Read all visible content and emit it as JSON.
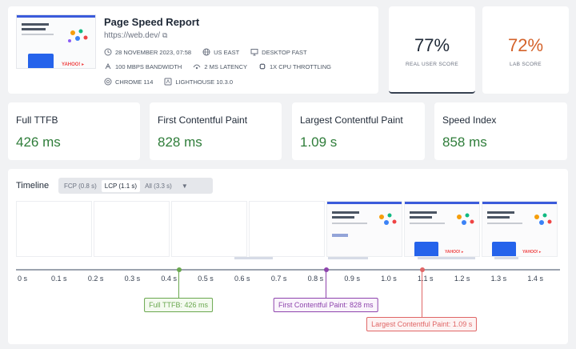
{
  "report": {
    "title": "Page Speed Report",
    "url": "https://web.dev/",
    "meta_row1": [
      {
        "icon": "clock-icon",
        "text": "28 NOVEMBER 2023, 07:58"
      },
      {
        "icon": "globe-icon",
        "text": "US EAST"
      },
      {
        "icon": "monitor-icon",
        "text": "DESKTOP FAST"
      }
    ],
    "meta_row2": [
      {
        "icon": "bandwidth-icon",
        "text": "100 MBPS BANDWIDTH"
      },
      {
        "icon": "latency-icon",
        "text": "2 MS LATENCY"
      },
      {
        "icon": "cpu-icon",
        "text": "1X CPU THROTTLING"
      }
    ],
    "meta_row3": [
      {
        "icon": "chrome-icon",
        "text": "CHROME 114"
      },
      {
        "icon": "lighthouse-icon",
        "text": "LIGHTHOUSE 10.3.0"
      }
    ]
  },
  "scores": {
    "real_user": {
      "value": "77%",
      "label": "REAL USER SCORE"
    },
    "lab": {
      "value": "72%",
      "label": "LAB SCORE"
    }
  },
  "metrics": [
    {
      "name": "Full TTFB",
      "value": "426 ms"
    },
    {
      "name": "First Contentful Paint",
      "value": "828 ms"
    },
    {
      "name": "Largest Contentful Paint",
      "value": "1.09 s"
    },
    {
      "name": "Speed Index",
      "value": "858 ms"
    }
  ],
  "timeline": {
    "title": "Timeline",
    "options": [
      {
        "label": "FCP (0.8 s)",
        "active": false
      },
      {
        "label": "LCP (1.1 s)",
        "active": true
      },
      {
        "label": "All (3.3 s)",
        "active": false
      }
    ],
    "caret": "▼",
    "ticks": [
      "0 s",
      "0.1 s",
      "0.2 s",
      "0.3 s",
      "0.4 s",
      "0.5 s",
      "0.6 s",
      "0.7 s",
      "0.8 s",
      "0.9 s",
      "1.0 s",
      "1.1 s",
      "1.2 s",
      "1.3 s",
      "1.4 s"
    ],
    "markers": [
      {
        "name": "ttfb",
        "label": "Full TTFB: 426 ms",
        "time_s": 0.426,
        "color": "#6aa84f",
        "bg": "#f4faf0"
      },
      {
        "name": "fcp",
        "label": "First Contentful Paint: 828 ms",
        "time_s": 0.828,
        "color": "#8e44ad",
        "bg": "#faf4fc"
      },
      {
        "name": "lcp",
        "label": "Largest Contentful Paint: 1.09 s",
        "time_s": 1.09,
        "color": "#e06666",
        "bg": "#fdf3f3"
      }
    ]
  },
  "thumb": {
    "logo_text": "YAHOO! ▸"
  }
}
